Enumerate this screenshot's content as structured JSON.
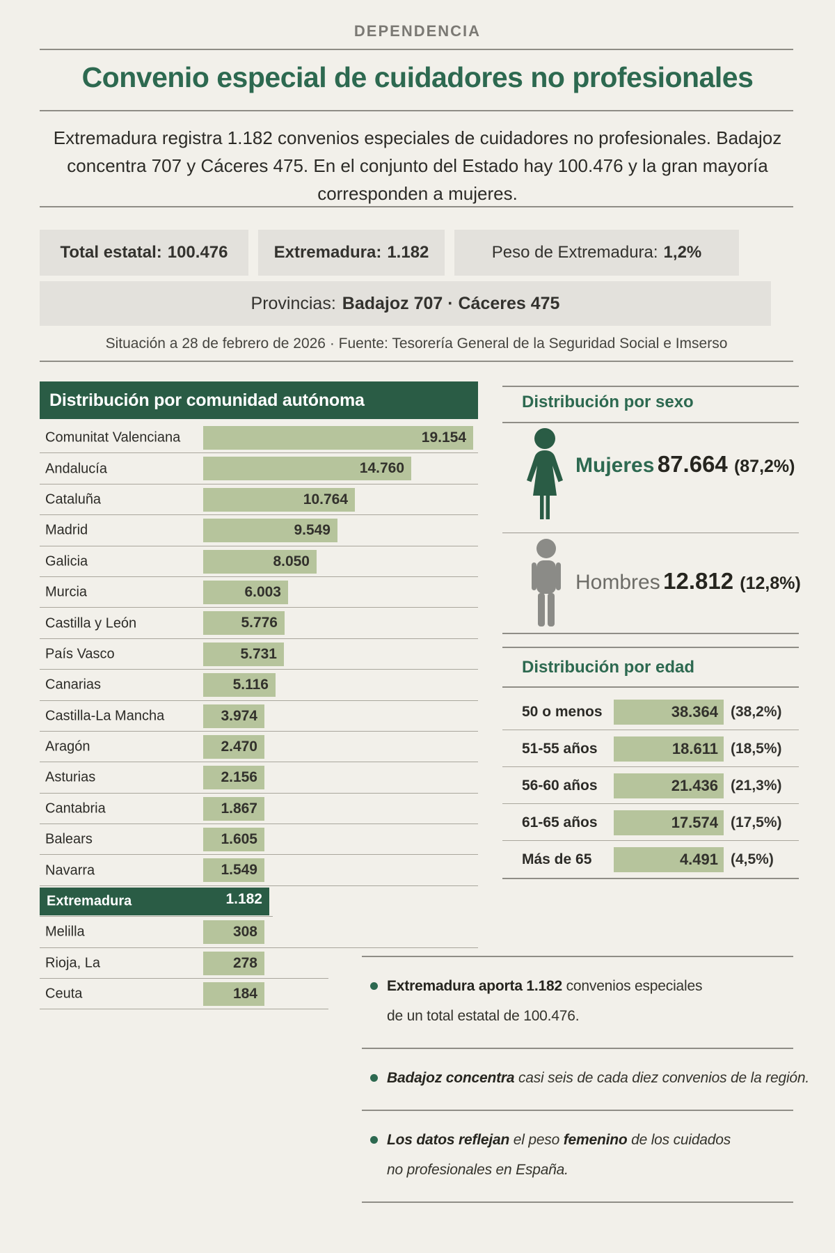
{
  "page": {
    "kicker": "DEPENDENCIA",
    "title": "Convenio especial de cuidadores no profesionales",
    "intro": "Extremadura registra 1.182 convenios especiales de cuidadores no profesionales. Badajoz concentra 707 y Cáceres 475. En el conjunto del Estado hay 100.476 y la gran mayoría corresponden a mujeres.",
    "source_line": "Situación a 28 de febrero de 2026 · Fuente: Tesorería General de la Seguridad Social e Imserso"
  },
  "stats": {
    "boxes": [
      {
        "label": "Total estatal:",
        "value": "100.476",
        "label_bold": true
      },
      {
        "label": "Extremadura:",
        "value": "1.182",
        "label_bold": true
      },
      {
        "label": "Peso de Extremadura:",
        "value": "1,2%",
        "label_bold": false
      }
    ],
    "provinces": {
      "label": "Provincias:",
      "value": "Badajoz 707 · Cáceres 475"
    }
  },
  "chart_data": [
    {
      "type": "bar",
      "orientation": "horizontal",
      "title": "Distribución por comunidad autónoma",
      "categories": [
        "Comunitat Valenciana",
        "Andalucía",
        "Cataluña",
        "Madrid",
        "Galicia",
        "Murcia",
        "Castilla y León",
        "País Vasco",
        "Canarias",
        "Castilla-La Mancha",
        "Aragón",
        "Asturias",
        "Cantabria",
        "Balears",
        "Navarra",
        "Extremadura",
        "Melilla",
        "Rioja, La",
        "Ceuta"
      ],
      "values": [
        19154,
        14760,
        10764,
        9549,
        8050,
        6003,
        5776,
        5731,
        5116,
        3974,
        2470,
        2156,
        1867,
        1605,
        1549,
        1182,
        308,
        278,
        184
      ],
      "value_labels": [
        "19.154",
        "14.760",
        "10.764",
        "9.549",
        "8.050",
        "6.003",
        "5.776",
        "5.731",
        "5.116",
        "3.974",
        "2.470",
        "2.156",
        "1.867",
        "1.605",
        "1.549",
        "1.182",
        "308",
        "278",
        "184"
      ],
      "xlim": [
        0,
        19154
      ],
      "highlight_category": "Extremadura",
      "bar_color": "#b6c49c",
      "highlight_color": "#2a5c45",
      "grid": false,
      "legend": "none"
    },
    {
      "type": "bar",
      "title": "Distribución por sexo",
      "categories": [
        "Mujeres",
        "Hombres"
      ],
      "values": [
        87664,
        12812
      ],
      "value_labels": [
        "87.664",
        "12.812"
      ],
      "pct_labels": [
        "(87,2%)",
        "(12,8%)"
      ],
      "icon_colors": [
        "#2a5c45",
        "#8b8b87"
      ],
      "grid": false,
      "legend": "none"
    },
    {
      "type": "bar",
      "orientation": "horizontal",
      "title": "Distribución por edad",
      "categories": [
        "50 o menos",
        "51-55 años",
        "56-60 años",
        "61-65 años",
        "Más de 65"
      ],
      "values": [
        38364,
        18611,
        21436,
        17574,
        4491
      ],
      "value_labels": [
        "38.364",
        "18.611",
        "21.436",
        "17.574",
        "4.491"
      ],
      "pct_labels": [
        "(38,2%)",
        "(18,5%)",
        "(21,3%)",
        "(17,5%)",
        "(4,5%)"
      ],
      "bar_color": "#b6c49c",
      "grid": false,
      "legend": "none"
    }
  ],
  "bullets": [
    {
      "lines": [
        [
          {
            "text": "Extremadura aporta 1.182",
            "bold": true,
            "italic": false
          },
          {
            "text": " convenios especiales",
            "bold": false,
            "italic": false
          }
        ],
        [
          {
            "text": "de un total estatal de 100.476.",
            "bold": false,
            "italic": false
          }
        ]
      ]
    },
    {
      "lines": [
        [
          {
            "text": "Badajoz concentra",
            "bold": true,
            "italic": true
          },
          {
            "text": " casi seis de cada diez convenios de la región.",
            "bold": false,
            "italic": true
          }
        ]
      ]
    },
    {
      "lines": [
        [
          {
            "text": "Los datos reflejan",
            "bold": true,
            "italic": true
          },
          {
            "text": " el peso ",
            "bold": false,
            "italic": true
          },
          {
            "text": "femenino",
            "bold": true,
            "italic": true
          },
          {
            "text": " de los cuidados",
            "bold": false,
            "italic": true
          }
        ],
        [
          {
            "text": "no profesionales en España.",
            "bold": false,
            "italic": true
          }
        ]
      ]
    }
  ],
  "colors": {
    "background": "#f2f0ea",
    "accent_green": "#2d6950",
    "banner_green": "#2a5c45",
    "bar_sage": "#b6c49c",
    "box_gray": "#e3e1dc",
    "rule_dark": "#8f8d86",
    "rule_light": "#a9a69c",
    "text_dark": "#2b2a26",
    "kicker_gray": "#7b7974",
    "man_gray": "#8b8b87"
  }
}
